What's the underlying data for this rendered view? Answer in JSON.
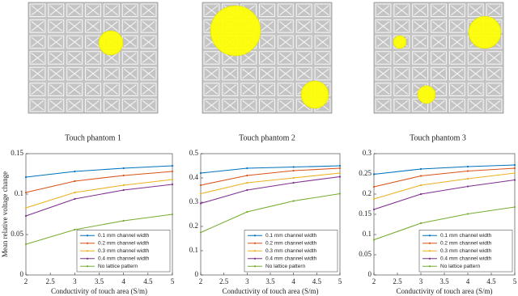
{
  "images": [
    {
      "caption": "Touch phantom 1"
    },
    {
      "caption": "Touch phantom 2"
    },
    {
      "caption": "Touch phantom 3"
    }
  ],
  "chart_data": [
    {
      "type": "line",
      "ylabel": "Mean relative voltage change",
      "xlabel": "Conductivity of touch area (S/m)",
      "x": [
        2,
        3,
        4,
        5
      ],
      "xlim": [
        2,
        5
      ],
      "xticks": [
        2,
        2.5,
        3,
        3.5,
        4,
        4.5,
        5
      ],
      "ylim": [
        0,
        0.15
      ],
      "yticks": [
        0,
        0.05,
        0.1,
        0.15
      ],
      "legend": "lower right",
      "series": [
        {
          "name": "0.1 mm channel width",
          "color": "#0072bd",
          "values": [
            0.121,
            0.128,
            0.132,
            0.135
          ]
        },
        {
          "name": "0.2 mm channel width",
          "color": "#d95319",
          "values": [
            0.102,
            0.116,
            0.123,
            0.128
          ]
        },
        {
          "name": "0.3 mm channel width",
          "color": "#edb120",
          "values": [
            0.083,
            0.102,
            0.111,
            0.118
          ]
        },
        {
          "name": "0.4 mm channel width",
          "color": "#7e2f8e",
          "values": [
            0.073,
            0.094,
            0.105,
            0.112
          ]
        },
        {
          "name": "No lattice pattern",
          "color": "#77ac30",
          "values": [
            0.038,
            0.056,
            0.067,
            0.075
          ]
        }
      ]
    },
    {
      "type": "line",
      "xlabel": "Conductivity of touch area (S/m)",
      "x": [
        2,
        3,
        4,
        5
      ],
      "xlim": [
        2,
        5
      ],
      "xticks": [
        2,
        2.5,
        3,
        3.5,
        4,
        4.5,
        5
      ],
      "ylim": [
        0,
        0.5
      ],
      "yticks": [
        0,
        0.1,
        0.2,
        0.3,
        0.4,
        0.5
      ],
      "legend": "lower right",
      "series": [
        {
          "name": "0.1 mm channel width",
          "color": "#0072bd",
          "values": [
            0.42,
            0.44,
            0.445,
            0.45
          ]
        },
        {
          "name": "0.2 mm channel width",
          "color": "#d95319",
          "values": [
            0.37,
            0.41,
            0.43,
            0.44
          ]
        },
        {
          "name": "0.3 mm channel width",
          "color": "#edb120",
          "values": [
            0.335,
            0.38,
            0.4,
            0.42
          ]
        },
        {
          "name": "0.4 mm channel width",
          "color": "#7e2f8e",
          "values": [
            0.295,
            0.35,
            0.38,
            0.405
          ]
        },
        {
          "name": "No lattice pattern",
          "color": "#77ac30",
          "values": [
            0.175,
            0.26,
            0.305,
            0.335
          ]
        }
      ]
    },
    {
      "type": "line",
      "xlabel": "Conductivity of touch area (S/m)",
      "x": [
        2,
        3,
        4,
        5
      ],
      "xlim": [
        2,
        5
      ],
      "xticks": [
        2,
        2.5,
        3,
        3.5,
        4,
        4.5,
        5
      ],
      "ylim": [
        0,
        0.3
      ],
      "yticks": [
        0,
        0.05,
        0.1,
        0.15,
        0.2,
        0.25,
        0.3
      ],
      "legend": "lower right",
      "series": [
        {
          "name": "0.1 mm channel width",
          "color": "#0072bd",
          "values": [
            0.249,
            0.262,
            0.268,
            0.272
          ]
        },
        {
          "name": "0.2 mm channel width",
          "color": "#d95319",
          "values": [
            0.218,
            0.245,
            0.257,
            0.264
          ]
        },
        {
          "name": "0.3 mm channel width",
          "color": "#edb120",
          "values": [
            0.188,
            0.222,
            0.238,
            0.252
          ]
        },
        {
          "name": "0.4 mm channel width",
          "color": "#7e2f8e",
          "values": [
            0.162,
            0.2,
            0.219,
            0.235
          ]
        },
        {
          "name": "No lattice pattern",
          "color": "#77ac30",
          "values": [
            0.087,
            0.128,
            0.151,
            0.168
          ]
        }
      ]
    }
  ]
}
